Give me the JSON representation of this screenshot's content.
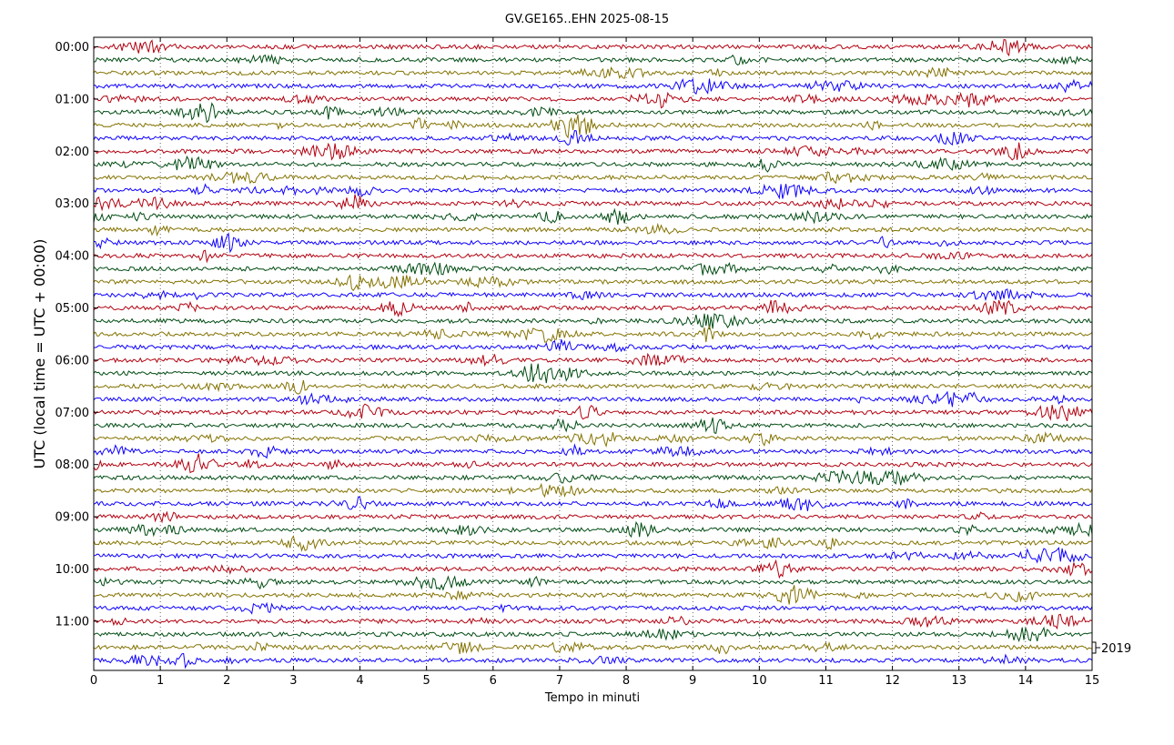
{
  "chart_data": {
    "type": "line",
    "title": "GV.GE165..EHN 2025-08-15",
    "xlabel": "Tempo in minuti",
    "ylabel": "UTC (local time = UTC + 00:00)",
    "xlim": [
      0,
      15
    ],
    "x_ticks": [
      "0",
      "1",
      "2",
      "3",
      "4",
      "5",
      "6",
      "7",
      "8",
      "9",
      "10",
      "11",
      "12",
      "13",
      "14",
      "15"
    ],
    "y_ticks": [
      "00:00",
      "01:00",
      "02:00",
      "03:00",
      "04:00",
      "05:00",
      "06:00",
      "07:00",
      "08:00",
      "09:00",
      "10:00",
      "11:00"
    ],
    "row_interval_minutes": 15,
    "row_count": 48,
    "trace_colors": [
      "#b2000f",
      "#004c12",
      "#847200",
      "#0e01ff"
    ],
    "scale_label": "2019",
    "grid": "vertical dotted at each minute",
    "legend": "none"
  }
}
